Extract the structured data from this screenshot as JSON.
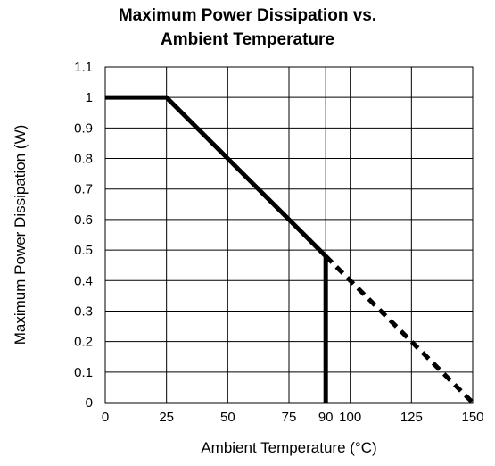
{
  "chart_data": {
    "type": "line",
    "title_lines": [
      "Maximum Power Dissipation vs.",
      "Ambient Temperature"
    ],
    "xlabel": "Ambient Temperature (°C)",
    "ylabel": "Maximum Power Dissipation (W)",
    "xlim": [
      0,
      150
    ],
    "ylim": [
      0,
      1.1
    ],
    "x_ticks": [
      0,
      25,
      50,
      75,
      90,
      100,
      125,
      150
    ],
    "x_tick_labels": [
      "0",
      "25",
      "50",
      "75",
      "90",
      "100",
      "125",
      "150"
    ],
    "y_ticks": [
      0,
      0.1,
      0.2,
      0.3,
      0.4,
      0.5,
      0.6,
      0.7,
      0.8,
      0.9,
      1,
      1.1
    ],
    "y_tick_labels": [
      "0",
      "0.1",
      "0.2",
      "0.3",
      "0.4",
      "0.5",
      "0.6",
      "0.7",
      "0.8",
      "0.9",
      "1",
      "1.1"
    ],
    "grid": true,
    "series": [
      {
        "style": "solid",
        "x": [
          0,
          25,
          90
        ],
        "y": [
          1,
          1,
          0.48
        ]
      },
      {
        "style": "solid",
        "x": [
          90,
          90
        ],
        "y": [
          0.48,
          0
        ]
      },
      {
        "style": "dashed",
        "x": [
          90,
          150
        ],
        "y": [
          0.48,
          0
        ]
      }
    ],
    "colors": {
      "line": "#000000",
      "grid": "#000000"
    }
  }
}
